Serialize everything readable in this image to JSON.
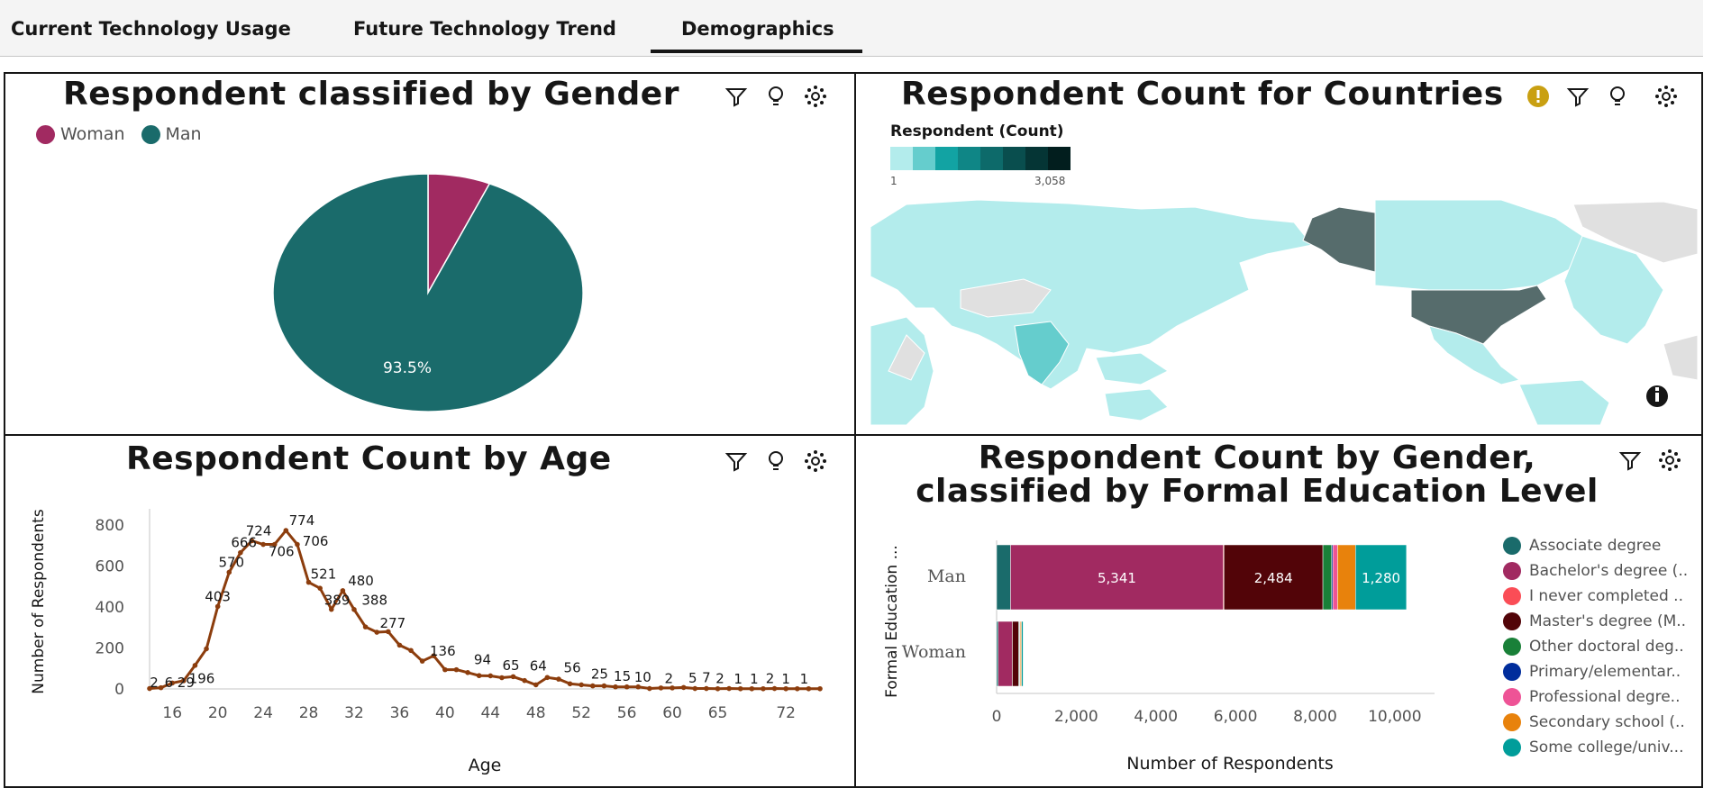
{
  "tabs": [
    {
      "label": "Current Technology Usage"
    },
    {
      "label": "Future Technology Trend"
    },
    {
      "label": "Demographics",
      "active": true
    }
  ],
  "gender_panel": {
    "title": "Respondent classified by Gender",
    "legend": [
      {
        "label": "Woman",
        "color": "#a12a61"
      },
      {
        "label": "Man",
        "color": "#1a6b6b"
      }
    ],
    "slice_label": "93.5%",
    "chart_data": {
      "type": "pie",
      "categories": [
        "Woman",
        "Man"
      ],
      "values": [
        6.5,
        93.5
      ]
    }
  },
  "country_panel": {
    "title": "Respondent Count for Countries",
    "legend_title": "Respondent (Count)",
    "legend_min": "1",
    "legend_max": "3,058",
    "legend_colors": [
      "#b3ecec",
      "#65cdcd",
      "#12a3a3",
      "#0f8686",
      "#0d6a6a",
      "#094e4e",
      "#053535",
      "#021e1e"
    ]
  },
  "age_panel": {
    "title": "Respondent Count by Age",
    "ylabel": "Number of Respondents",
    "xlabel": "Age",
    "x_ticks": [
      "16",
      "20",
      "24",
      "28",
      "32",
      "36",
      "40",
      "44",
      "48",
      "52",
      "56",
      "60",
      "65",
      "72"
    ],
    "y_ticks": [
      "0",
      "200",
      "400",
      "600",
      "800"
    ],
    "chart_data": {
      "type": "line",
      "x": [
        14,
        15,
        16,
        17,
        18,
        19,
        20,
        21,
        22,
        23,
        24,
        25,
        26,
        27,
        28,
        29,
        30,
        31,
        32,
        33,
        34,
        35,
        36,
        37,
        38,
        39,
        40,
        41,
        42,
        43,
        44,
        45,
        46,
        47,
        48,
        49,
        50,
        51,
        52,
        53,
        54,
        55,
        56,
        57,
        58,
        59,
        60,
        61,
        62,
        63,
        64,
        65,
        66,
        67,
        68,
        69,
        70,
        71,
        72,
        73
      ],
      "y": [
        2,
        6,
        29,
        40,
        115,
        196,
        403,
        570,
        666,
        724,
        706,
        706,
        774,
        706,
        521,
        492,
        389,
        480,
        388,
        303,
        277,
        280,
        214,
        188,
        136,
        162,
        94,
        94,
        80,
        65,
        64,
        55,
        60,
        41,
        20,
        56,
        48,
        25,
        20,
        15,
        15,
        10,
        10,
        10,
        2,
        5,
        5,
        7,
        2,
        2,
        1,
        2,
        1,
        1,
        1,
        2,
        1,
        1,
        1,
        1
      ]
    },
    "value_labels": [
      "2",
      "6",
      "29",
      "196",
      "403",
      "570",
      "666",
      "724",
      "706",
      "774",
      "706",
      "521",
      "389",
      "480",
      "388",
      "277",
      "136",
      "94",
      "65",
      "64",
      "56",
      "25",
      "15",
      "10",
      "2",
      "5",
      "7",
      "2",
      "1",
      "1",
      "2",
      "1",
      "1"
    ]
  },
  "education_panel": {
    "title_line1": "Respondent Count by Gender,",
    "title_line2": "classified by Formal Education Level",
    "ylabel": "Formal Education ...",
    "xlabel": "Number of Respondents",
    "x_ticks": [
      "0",
      "2,000",
      "4,000",
      "6,000",
      "8,000",
      "10,000"
    ],
    "categories": [
      "Man",
      "Woman"
    ],
    "legend": [
      {
        "label": "Associate degree",
        "color": "#1a6b6b"
      },
      {
        "label": "Bachelor's degree (..",
        "color": "#a12a61"
      },
      {
        "label": "I never completed ..",
        "color": "#fa4d56"
      },
      {
        "label": "Master's degree (M..",
        "color": "#520408"
      },
      {
        "label": "Other doctoral deg..",
        "color": "#198038"
      },
      {
        "label": "Primary/elementar..",
        "color": "#002d9c"
      },
      {
        "label": "Professional degre..",
        "color": "#ee5396"
      },
      {
        "label": "Secondary school (..",
        "color": "#e8820c"
      },
      {
        "label": "Some college/univ...",
        "color": "#009d9a"
      }
    ],
    "chart_data": {
      "type": "bar",
      "orientation": "horizontal",
      "stacked": true,
      "categories": [
        "Man",
        "Woman"
      ],
      "xlim": [
        0,
        11000
      ],
      "series": [
        {
          "name": "Associate degree",
          "values": [
            350,
            40
          ]
        },
        {
          "name": "Bachelor's degree (..",
          "values": [
            5341,
            350
          ]
        },
        {
          "name": "I never completed ..",
          "values": [
            20,
            5
          ]
        },
        {
          "name": "Master's degree (M..",
          "values": [
            2484,
            160
          ]
        },
        {
          "name": "Other doctoral deg..",
          "values": [
            220,
            20
          ]
        },
        {
          "name": "Primary/elementar..",
          "values": [
            30,
            5
          ]
        },
        {
          "name": "Professional degre..",
          "values": [
            120,
            15
          ]
        },
        {
          "name": "Secondary school (..",
          "values": [
            450,
            30
          ]
        },
        {
          "name": "Some college/univ...",
          "values": [
            1280,
            40
          ]
        }
      ],
      "data_labels": [
        "5,341",
        "2,484",
        "1,280"
      ]
    }
  }
}
